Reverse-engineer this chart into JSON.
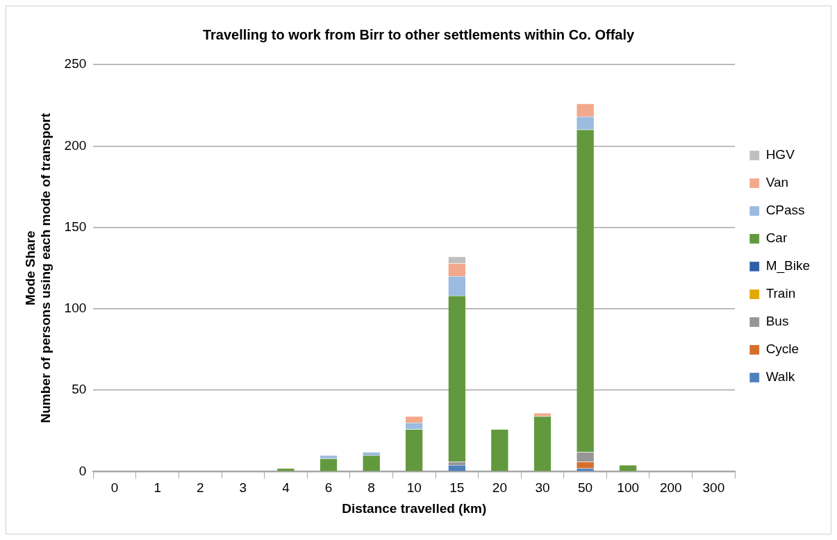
{
  "chart_data": {
    "type": "bar",
    "title": "Travelling to work from Birr to other settlements within Co. Offaly",
    "xlabel": "Distance travelled (km)",
    "ylabel": "Mode Share\nNumber of persons using each mode of transport",
    "categories": [
      "0",
      "1",
      "2",
      "3",
      "4",
      "6",
      "8",
      "10",
      "15",
      "20",
      "30",
      "50",
      "100",
      "200",
      "300"
    ],
    "stacked": true,
    "ylim": [
      0,
      250
    ],
    "yticks": [
      0,
      50,
      100,
      150,
      200,
      250
    ],
    "grid": "y",
    "legend": "right",
    "series": [
      {
        "name": "Walk",
        "color": "#4f81bd",
        "values": [
          0,
          0,
          0,
          0,
          0,
          0,
          0,
          0,
          4,
          0,
          0,
          2,
          0,
          0,
          0
        ]
      },
      {
        "name": "Cycle",
        "color": "#d46f2a",
        "values": [
          0,
          0,
          0,
          0,
          0,
          0,
          0,
          0,
          0,
          0,
          0,
          4,
          0,
          0,
          0
        ]
      },
      {
        "name": "Bus",
        "color": "#969696",
        "values": [
          0,
          0,
          0,
          0,
          0,
          0,
          0,
          0,
          2,
          0,
          0,
          6,
          0,
          0,
          0
        ]
      },
      {
        "name": "Train",
        "color": "#e5a800",
        "values": [
          0,
          0,
          0,
          0,
          0,
          0,
          0,
          0,
          0,
          0,
          0,
          0,
          0,
          0,
          0
        ]
      },
      {
        "name": "M_Bike",
        "color": "#2e5fa8",
        "values": [
          0,
          0,
          0,
          0,
          0,
          0,
          0,
          0,
          0,
          0,
          0,
          0,
          0,
          0,
          0
        ]
      },
      {
        "name": "Car",
        "color": "#62993e",
        "values": [
          0,
          0,
          0,
          0,
          2,
          8,
          10,
          26,
          102,
          26,
          34,
          198,
          4,
          0,
          0
        ]
      },
      {
        "name": "CPass",
        "color": "#9bbbe0",
        "values": [
          0,
          0,
          0,
          0,
          0,
          2,
          2,
          4,
          12,
          0,
          0,
          8,
          0,
          0,
          0
        ]
      },
      {
        "name": "Van",
        "color": "#f2a98b",
        "values": [
          0,
          0,
          0,
          0,
          0,
          0,
          0,
          4,
          8,
          0,
          2,
          8,
          0,
          0,
          0
        ]
      },
      {
        "name": "HGV",
        "color": "#bfbfbf",
        "values": [
          0,
          0,
          0,
          0,
          0,
          0,
          0,
          0,
          4,
          0,
          0,
          0,
          0,
          0,
          0
        ]
      }
    ]
  }
}
